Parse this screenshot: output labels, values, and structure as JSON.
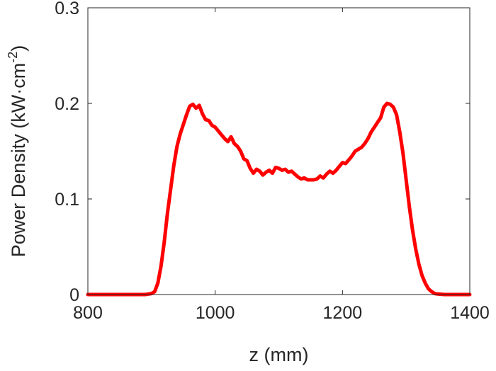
{
  "chart_data": {
    "type": "line",
    "title": "",
    "xlabel": "z (mm)",
    "ylabel": {
      "main": "Power Density (kW·cm",
      "superscript": "-2",
      "close": ")"
    },
    "xlim": [
      800,
      1400
    ],
    "ylim": [
      0,
      0.3
    ],
    "xticks": [
      800,
      1000,
      1200,
      1400
    ],
    "yticks": [
      0,
      0.1,
      0.2,
      0.3
    ],
    "xtick_labels": [
      "800",
      "1000",
      "1200",
      "1400"
    ],
    "ytick_labels": [
      "0",
      "0.1",
      "0.2",
      "0.3"
    ],
    "grid": false,
    "box": true,
    "series": [
      {
        "color": "#ff0000",
        "x": [
          800,
          850,
          890,
          900,
          905,
          910,
          915,
          920,
          925,
          930,
          935,
          940,
          945,
          950,
          955,
          960,
          965,
          970,
          975,
          980,
          985,
          990,
          995,
          1000,
          1005,
          1010,
          1015,
          1020,
          1025,
          1030,
          1035,
          1040,
          1045,
          1050,
          1055,
          1060,
          1065,
          1070,
          1075,
          1080,
          1085,
          1090,
          1095,
          1100,
          1105,
          1110,
          1115,
          1120,
          1125,
          1130,
          1135,
          1140,
          1145,
          1150,
          1155,
          1160,
          1165,
          1170,
          1175,
          1180,
          1185,
          1190,
          1195,
          1200,
          1205,
          1210,
          1215,
          1220,
          1225,
          1230,
          1235,
          1240,
          1245,
          1250,
          1255,
          1260,
          1265,
          1270,
          1275,
          1280,
          1285,
          1290,
          1295,
          1300,
          1305,
          1310,
          1315,
          1320,
          1325,
          1330,
          1335,
          1340,
          1345,
          1350,
          1360,
          1370,
          1380,
          1400
        ],
        "y": [
          0,
          0,
          0,
          0.001,
          0.003,
          0.012,
          0.03,
          0.055,
          0.085,
          0.11,
          0.135,
          0.155,
          0.168,
          0.178,
          0.188,
          0.197,
          0.199,
          0.195,
          0.198,
          0.189,
          0.183,
          0.182,
          0.177,
          0.175,
          0.171,
          0.167,
          0.163,
          0.16,
          0.165,
          0.158,
          0.155,
          0.15,
          0.142,
          0.14,
          0.132,
          0.127,
          0.131,
          0.129,
          0.125,
          0.128,
          0.13,
          0.127,
          0.133,
          0.132,
          0.13,
          0.131,
          0.128,
          0.129,
          0.126,
          0.123,
          0.121,
          0.122,
          0.12,
          0.12,
          0.12,
          0.121,
          0.124,
          0.122,
          0.126,
          0.129,
          0.127,
          0.13,
          0.134,
          0.138,
          0.137,
          0.141,
          0.145,
          0.15,
          0.152,
          0.154,
          0.158,
          0.163,
          0.17,
          0.175,
          0.18,
          0.185,
          0.196,
          0.2,
          0.199,
          0.196,
          0.188,
          0.17,
          0.148,
          0.12,
          0.092,
          0.068,
          0.048,
          0.032,
          0.02,
          0.012,
          0.006,
          0.003,
          0.001,
          0.0005,
          0,
          0,
          0,
          0
        ]
      }
    ]
  }
}
